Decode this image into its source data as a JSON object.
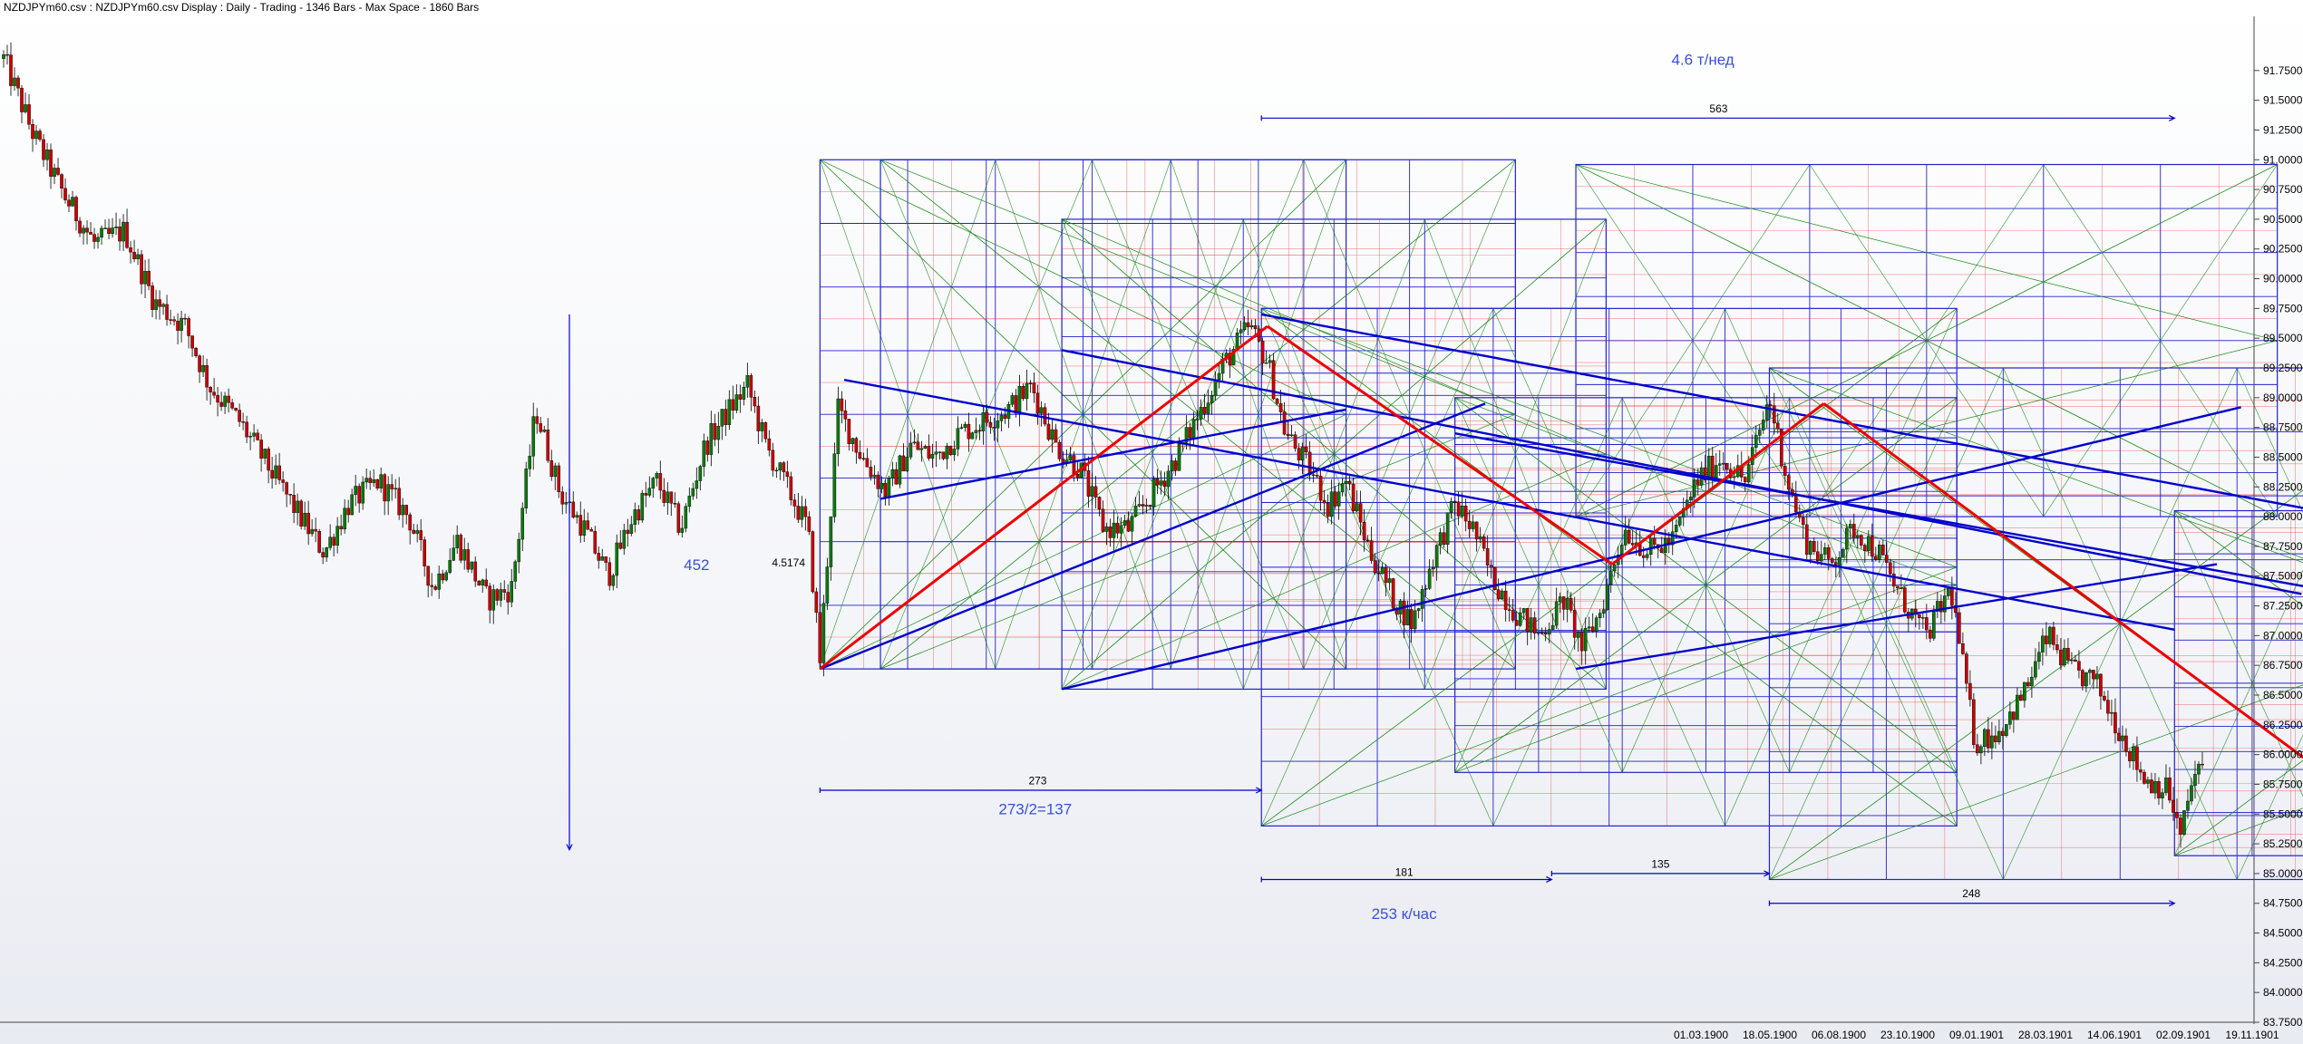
{
  "header": {
    "title": "NZDJPYm60.csv : NZDJPYm60.csv Display :  Daily  - Trading - 1346 Bars -  Max Space - 1860 Bars"
  },
  "colors": {
    "up": "#0a7a0a",
    "down": "#cc0000",
    "box": "#2222cc",
    "diag_green": "#1a8a1a",
    "diag_red": "#e03030",
    "trend_blue": "#0000cc",
    "trend_red": "#ee0000",
    "annotation": "#3a4fd8"
  },
  "chart_data": {
    "type": "candlestick",
    "title": "NZDJPYm60.csv : NZDJPYm60.csv Display :  Daily  - Trading - 1346 Bars -  Max Space - 1860 Bars",
    "ylim": [
      83.75,
      92.0
    ],
    "y_ticks": [
      "91.7500",
      "91.5000",
      "91.2500",
      "91.0000",
      "90.7500",
      "90.5000",
      "90.2500",
      "90.0000",
      "89.7500",
      "89.5000",
      "89.2500",
      "89.0000",
      "88.7500",
      "88.5000",
      "88.2500",
      "88.0000",
      "87.7500",
      "87.5000",
      "87.2500",
      "87.0000",
      "86.7500",
      "86.5000",
      "86.2500",
      "86.0000",
      "85.7500",
      "85.5000",
      "85.2500",
      "85.0000",
      "84.7500",
      "84.5000",
      "84.2500",
      "84.0000",
      "83.7500"
    ],
    "x_ticks": [
      "01.03.1900",
      "18.05.1900",
      "06.08.1900",
      "23.10.1900",
      "09.01.1901",
      "28.03.1901",
      "14.06.1901",
      "02.09.1901",
      "19.11.1901"
    ],
    "bars_visible": 1346,
    "max_space": 1860,
    "price_path": [
      [
        0,
        91.85
      ],
      [
        25,
        91.2
      ],
      [
        50,
        90.7
      ],
      [
        75,
        90.3
      ],
      [
        100,
        90.4
      ],
      [
        125,
        89.8
      ],
      [
        150,
        89.6
      ],
      [
        170,
        89.1
      ],
      [
        195,
        88.8
      ],
      [
        220,
        88.4
      ],
      [
        245,
        88.0
      ],
      [
        265,
        87.7
      ],
      [
        285,
        88.1
      ],
      [
        310,
        88.3
      ],
      [
        335,
        88.0
      ],
      [
        355,
        87.4
      ],
      [
        375,
        87.8
      ],
      [
        400,
        87.3
      ],
      [
        420,
        87.4
      ],
      [
        440,
        88.9
      ],
      [
        460,
        88.2
      ],
      [
        480,
        87.9
      ],
      [
        500,
        87.5
      ],
      [
        520,
        88.0
      ],
      [
        540,
        88.3
      ],
      [
        560,
        87.9
      ],
      [
        580,
        88.6
      ],
      [
        600,
        88.9
      ],
      [
        615,
        89.1
      ],
      [
        630,
        88.6
      ],
      [
        650,
        88.2
      ],
      [
        665,
        87.9
      ],
      [
        675,
        86.8
      ],
      [
        690,
        88.9
      ],
      [
        710,
        88.5
      ],
      [
        730,
        88.2
      ],
      [
        750,
        88.6
      ],
      [
        770,
        88.5
      ],
      [
        790,
        88.7
      ],
      [
        810,
        88.8
      ],
      [
        830,
        88.9
      ],
      [
        850,
        89.1
      ],
      [
        870,
        88.6
      ],
      [
        890,
        88.4
      ],
      [
        910,
        87.9
      ],
      [
        930,
        87.9
      ],
      [
        950,
        88.2
      ],
      [
        970,
        88.5
      ],
      [
        990,
        88.9
      ],
      [
        1010,
        89.3
      ],
      [
        1030,
        89.6
      ],
      [
        1045,
        89.3
      ],
      [
        1060,
        88.7
      ],
      [
        1080,
        88.4
      ],
      [
        1095,
        88.1
      ],
      [
        1110,
        88.3
      ],
      [
        1130,
        87.7
      ],
      [
        1150,
        87.3
      ],
      [
        1165,
        87.1
      ],
      [
        1180,
        87.6
      ],
      [
        1200,
        88.1
      ],
      [
        1215,
        87.9
      ],
      [
        1230,
        87.5
      ],
      [
        1250,
        87.2
      ],
      [
        1270,
        87.0
      ],
      [
        1290,
        87.3
      ],
      [
        1305,
        86.9
      ],
      [
        1320,
        87.2
      ],
      [
        1340,
        87.9
      ],
      [
        1360,
        87.7
      ],
      [
        1380,
        87.8
      ],
      [
        1400,
        88.3
      ],
      [
        1420,
        88.5
      ],
      [
        1440,
        88.3
      ],
      [
        1460,
        89.0
      ],
      [
        1475,
        88.3
      ],
      [
        1490,
        87.8
      ],
      [
        1510,
        87.6
      ],
      [
        1530,
        87.9
      ],
      [
        1550,
        87.7
      ],
      [
        1570,
        87.3
      ],
      [
        1590,
        87.0
      ],
      [
        1610,
        87.4
      ],
      [
        1630,
        86.1
      ],
      [
        1650,
        86.2
      ],
      [
        1670,
        86.5
      ],
      [
        1690,
        87.0
      ],
      [
        1710,
        86.7
      ],
      [
        1730,
        86.6
      ],
      [
        1750,
        86.2
      ],
      [
        1770,
        85.8
      ],
      [
        1790,
        85.7
      ],
      [
        1800,
        85.3
      ],
      [
        1810,
        85.8
      ],
      [
        1820,
        85.9
      ]
    ],
    "boxes": [
      {
        "x1": 675,
        "x2": 1110,
        "y1": 91.0,
        "y2": 86.72
      },
      {
        "x1": 725,
        "x2": 1250,
        "y1": 91.0,
        "y2": 86.72
      },
      {
        "x1": 875,
        "x2": 1325,
        "y1": 90.5,
        "y2": 86.55
      },
      {
        "x1": 1300,
        "x2": 1880,
        "y1": 90.96,
        "y2": 88.0
      },
      {
        "x1": 1040,
        "x2": 1615,
        "y1": 89.75,
        "y2": 85.4
      },
      {
        "x1": 1200,
        "x2": 1615,
        "y1": 89.0,
        "y2": 85.85
      },
      {
        "x1": 1460,
        "x2": 2040,
        "y1": 89.25,
        "y2": 84.95
      },
      {
        "x1": 1795,
        "x2": 2180,
        "y1": 88.05,
        "y2": 85.15
      }
    ],
    "red_lines": [
      [
        [
          675,
          86.72
        ],
        [
          1045,
          89.6
        ]
      ],
      [
        [
          1045,
          89.6
        ],
        [
          1330,
          87.6
        ]
      ],
      [
        [
          1330,
          87.6
        ],
        [
          1505,
          88.95
        ]
      ],
      [
        [
          1505,
          88.95
        ],
        [
          1905,
          85.95
        ]
      ]
    ],
    "blue_lines": [
      [
        [
          675,
          86.72
        ],
        [
          1225,
          88.95
        ]
      ],
      [
        [
          875,
          86.55
        ],
        [
          1850,
          88.92
        ]
      ],
      [
        [
          1300,
          86.72
        ],
        [
          1830,
          87.6
        ]
      ],
      [
        [
          695,
          89.15
        ],
        [
          1795,
          87.05
        ]
      ],
      [
        [
          725,
          88.15
        ],
        [
          1110,
          88.9
        ]
      ],
      [
        [
          875,
          89.4
        ],
        [
          1900,
          87.35
        ]
      ],
      [
        [
          1040,
          89.7
        ],
        [
          1940,
          88.0
        ]
      ],
      [
        [
          1200,
          88.7
        ],
        [
          1910,
          87.4
        ]
      ]
    ],
    "annotations": [
      {
        "text": "4.6 т/нед",
        "x": 1405,
        "y": 91.8,
        "style": "blue"
      },
      {
        "text": "563",
        "x": 1418,
        "y": 91.4,
        "style": "small"
      },
      {
        "text": "452",
        "x": 573,
        "y": 87.55,
        "style": "blue"
      },
      {
        "text": "4.5174",
        "x": 649,
        "y": 87.58,
        "style": "small"
      },
      {
        "text": "273",
        "x": 855,
        "y": 85.75,
        "style": "small"
      },
      {
        "text": "273/2=137",
        "x": 853,
        "y": 85.5,
        "style": "blue"
      },
      {
        "text": "181",
        "x": 1158,
        "y": 84.98,
        "style": "small"
      },
      {
        "text": "135",
        "x": 1370,
        "y": 85.05,
        "style": "small"
      },
      {
        "text": "253 к/час",
        "x": 1158,
        "y": 84.62,
        "style": "blue"
      },
      {
        "text": "248",
        "x": 1627,
        "y": 84.8,
        "style": "small"
      }
    ]
  }
}
